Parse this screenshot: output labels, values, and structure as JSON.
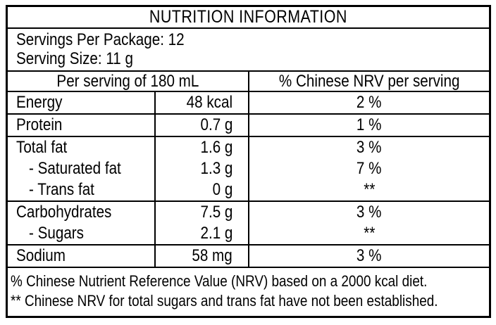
{
  "label": {
    "title": "NUTRITION INFORMATION",
    "serving_lines": [
      "Servings Per Package: 12",
      "Serving Size: 11 g"
    ],
    "column_headers": {
      "amount": "Per serving of 180 mL",
      "nrv": "% Chinese NRV per serving"
    },
    "nutrient_groups": [
      [
        {
          "name": "Energy",
          "amount": "48 kcal",
          "nrv": "2 %",
          "indent": false
        }
      ],
      [
        {
          "name": "Protein",
          "amount": "0.7 g",
          "nrv": "1 %",
          "indent": false
        }
      ],
      [
        {
          "name": "Total fat",
          "amount": "1.6 g",
          "nrv": "3 %",
          "indent": false
        },
        {
          "name": "- Saturated fat",
          "amount": "1.3 g",
          "nrv": "7 %",
          "indent": true
        },
        {
          "name": "- Trans fat",
          "amount": "0 g",
          "nrv": "**",
          "indent": true
        }
      ],
      [
        {
          "name": "Carbohydrates",
          "amount": "7.5 g",
          "nrv": "3 %",
          "indent": false
        },
        {
          "name": "- Sugars",
          "amount": "2.1 g",
          "nrv": "**",
          "indent": true
        }
      ],
      [
        {
          "name": "Sodium",
          "amount": "58 mg",
          "nrv": "3 %",
          "indent": false
        }
      ]
    ],
    "footnotes": [
      "% Chinese Nutrient Reference Value (NRV) based on a 2000 kcal diet.",
      "** Chinese NRV for total sugars and trans fat have not been established."
    ],
    "colors": {
      "text": "#000000",
      "background": "#ffffff",
      "border": "#000000"
    }
  }
}
